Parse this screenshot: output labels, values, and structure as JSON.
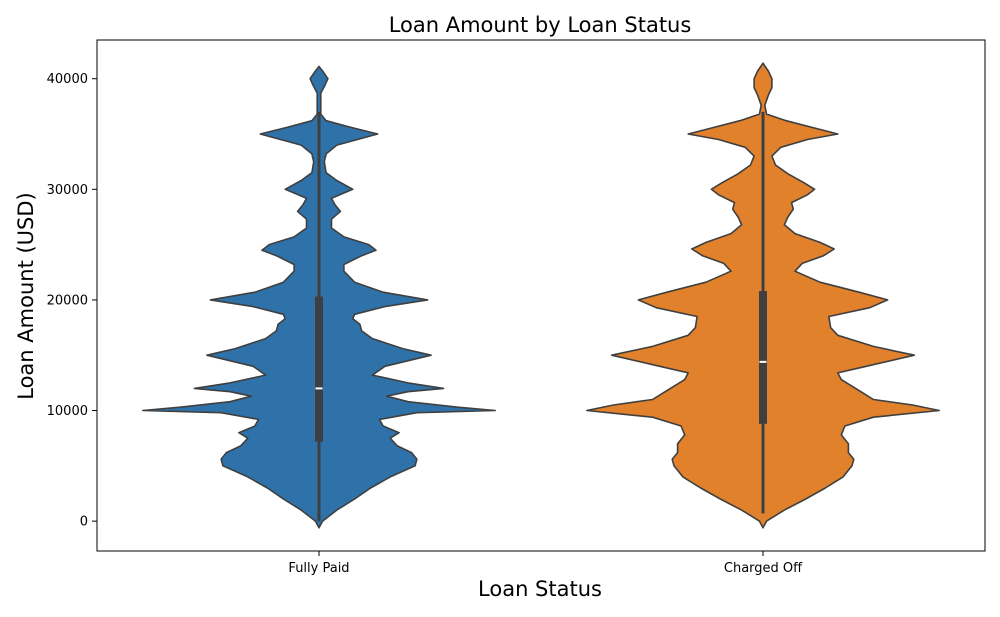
{
  "chart_data": {
    "type": "violin",
    "title": "Loan Amount by Loan Status",
    "xlabel": "Loan Status",
    "ylabel": "Loan Amount (USD)",
    "ylim": [
      -2700,
      43500
    ],
    "yticks": [
      0,
      10000,
      20000,
      30000,
      40000
    ],
    "grid": false,
    "categories": [
      "Fully Paid",
      "Charged Off"
    ],
    "series": [
      {
        "category": "Fully Paid",
        "color": "#2f72a9",
        "min": 0,
        "q1": 7200,
        "median": 12000,
        "q3": 20300,
        "max": 37000,
        "density_profile": [
          [
            -600,
            0.0
          ],
          [
            0,
            0.02
          ],
          [
            1000,
            0.1
          ],
          [
            2000,
            0.2
          ],
          [
            3000,
            0.29
          ],
          [
            4000,
            0.4
          ],
          [
            5000,
            0.54
          ],
          [
            5600,
            0.55
          ],
          [
            6200,
            0.52
          ],
          [
            6800,
            0.44
          ],
          [
            7500,
            0.4
          ],
          [
            8000,
            0.45
          ],
          [
            8600,
            0.36
          ],
          [
            9200,
            0.34
          ],
          [
            9800,
            0.55
          ],
          [
            10000,
            0.99
          ],
          [
            10300,
            0.78
          ],
          [
            10800,
            0.5
          ],
          [
            11300,
            0.38
          ],
          [
            11700,
            0.5
          ],
          [
            12000,
            0.7
          ],
          [
            12500,
            0.5
          ],
          [
            13200,
            0.3
          ],
          [
            14000,
            0.37
          ],
          [
            15000,
            0.63
          ],
          [
            15600,
            0.47
          ],
          [
            16500,
            0.3
          ],
          [
            17200,
            0.24
          ],
          [
            17800,
            0.23
          ],
          [
            18300,
            0.19
          ],
          [
            18700,
            0.2
          ],
          [
            19400,
            0.37
          ],
          [
            20000,
            0.61
          ],
          [
            20700,
            0.36
          ],
          [
            21600,
            0.2
          ],
          [
            22600,
            0.14
          ],
          [
            23200,
            0.14
          ],
          [
            24000,
            0.24
          ],
          [
            24500,
            0.32
          ],
          [
            25000,
            0.28
          ],
          [
            25700,
            0.14
          ],
          [
            26500,
            0.07
          ],
          [
            27300,
            0.07
          ],
          [
            28000,
            0.12
          ],
          [
            28600,
            0.09
          ],
          [
            29200,
            0.07
          ],
          [
            30000,
            0.19
          ],
          [
            30800,
            0.1
          ],
          [
            31500,
            0.04
          ],
          [
            32500,
            0.03
          ],
          [
            33200,
            0.04
          ],
          [
            34000,
            0.1
          ],
          [
            35000,
            0.33
          ],
          [
            35600,
            0.18
          ],
          [
            36200,
            0.04
          ],
          [
            36800,
            0.01
          ],
          [
            37800,
            0.01
          ],
          [
            38700,
            0.01
          ],
          [
            39300,
            0.03
          ],
          [
            40000,
            0.05
          ],
          [
            40700,
            0.02
          ],
          [
            41100,
            0.0
          ]
        ]
      },
      {
        "category": "Charged Off",
        "color": "#e1812c",
        "min": 700,
        "q1": 8800,
        "median": 14400,
        "q3": 20800,
        "max": 37000,
        "density_profile": [
          [
            -600,
            0.0
          ],
          [
            0,
            0.02
          ],
          [
            1000,
            0.12
          ],
          [
            2000,
            0.24
          ],
          [
            3000,
            0.35
          ],
          [
            4000,
            0.45
          ],
          [
            5000,
            0.5
          ],
          [
            5600,
            0.51
          ],
          [
            6200,
            0.48
          ],
          [
            7000,
            0.48
          ],
          [
            7800,
            0.44
          ],
          [
            8600,
            0.46
          ],
          [
            9400,
            0.62
          ],
          [
            10000,
            0.99
          ],
          [
            10500,
            0.84
          ],
          [
            11000,
            0.62
          ],
          [
            11600,
            0.56
          ],
          [
            12200,
            0.5
          ],
          [
            12800,
            0.44
          ],
          [
            13400,
            0.42
          ],
          [
            14000,
            0.58
          ],
          [
            15000,
            0.85
          ],
          [
            15800,
            0.62
          ],
          [
            16800,
            0.42
          ],
          [
            17500,
            0.38
          ],
          [
            18500,
            0.37
          ],
          [
            19300,
            0.6
          ],
          [
            20000,
            0.7
          ],
          [
            20700,
            0.54
          ],
          [
            21600,
            0.32
          ],
          [
            22600,
            0.18
          ],
          [
            23300,
            0.22
          ],
          [
            24000,
            0.34
          ],
          [
            24600,
            0.4
          ],
          [
            25200,
            0.32
          ],
          [
            26000,
            0.18
          ],
          [
            26800,
            0.12
          ],
          [
            27500,
            0.14
          ],
          [
            28200,
            0.17
          ],
          [
            28800,
            0.16
          ],
          [
            29500,
            0.25
          ],
          [
            30000,
            0.29
          ],
          [
            30600,
            0.23
          ],
          [
            31400,
            0.14
          ],
          [
            32200,
            0.07
          ],
          [
            33000,
            0.05
          ],
          [
            33800,
            0.1
          ],
          [
            34500,
            0.25
          ],
          [
            35000,
            0.42
          ],
          [
            35500,
            0.3
          ],
          [
            36200,
            0.13
          ],
          [
            36800,
            0.02
          ],
          [
            37600,
            0.01
          ],
          [
            38500,
            0.03
          ],
          [
            39200,
            0.05
          ],
          [
            40000,
            0.05
          ],
          [
            40700,
            0.03
          ],
          [
            41400,
            0.0
          ]
        ]
      }
    ]
  }
}
